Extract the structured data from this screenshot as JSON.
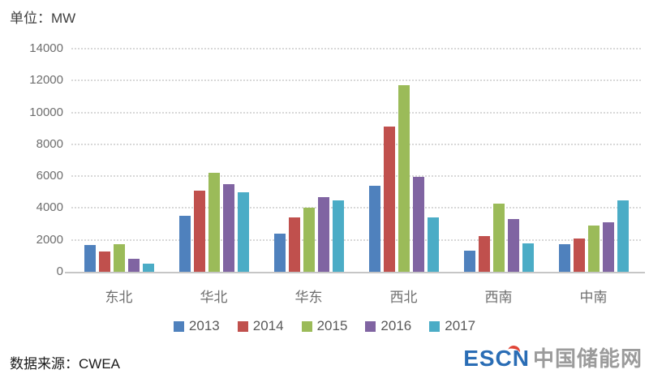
{
  "page": {
    "unit_label": "单位：MW",
    "source_label": "数据来源：CWEA"
  },
  "logo": {
    "escn": "ESCN",
    "cn": "中国储能网"
  },
  "chart_data": {
    "type": "bar",
    "title": "",
    "unit": "MW",
    "categories": [
      "东北",
      "华北",
      "华东",
      "西北",
      "西南",
      "中南"
    ],
    "series": [
      {
        "name": "2013",
        "color": "#4F81BD",
        "values": [
          1700,
          3500,
          2400,
          5400,
          1300,
          1750
        ]
      },
      {
        "name": "2014",
        "color": "#C0504D",
        "values": [
          1250,
          5100,
          3400,
          9100,
          2250,
          2100
        ]
      },
      {
        "name": "2015",
        "color": "#9BBB59",
        "values": [
          1750,
          6200,
          4000,
          11700,
          4300,
          2900
        ]
      },
      {
        "name": "2016",
        "color": "#8064A2",
        "values": [
          800,
          5500,
          4700,
          5950,
          3300,
          3100
        ]
      },
      {
        "name": "2017",
        "color": "#4BACC6",
        "values": [
          500,
          5000,
          4500,
          3400,
          1800,
          4500
        ]
      }
    ],
    "ylim": [
      0,
      14000
    ],
    "yticks": [
      0,
      2000,
      4000,
      6000,
      8000,
      10000,
      12000,
      14000
    ],
    "grid": "dotted-horizontal",
    "legend_position": "bottom"
  }
}
